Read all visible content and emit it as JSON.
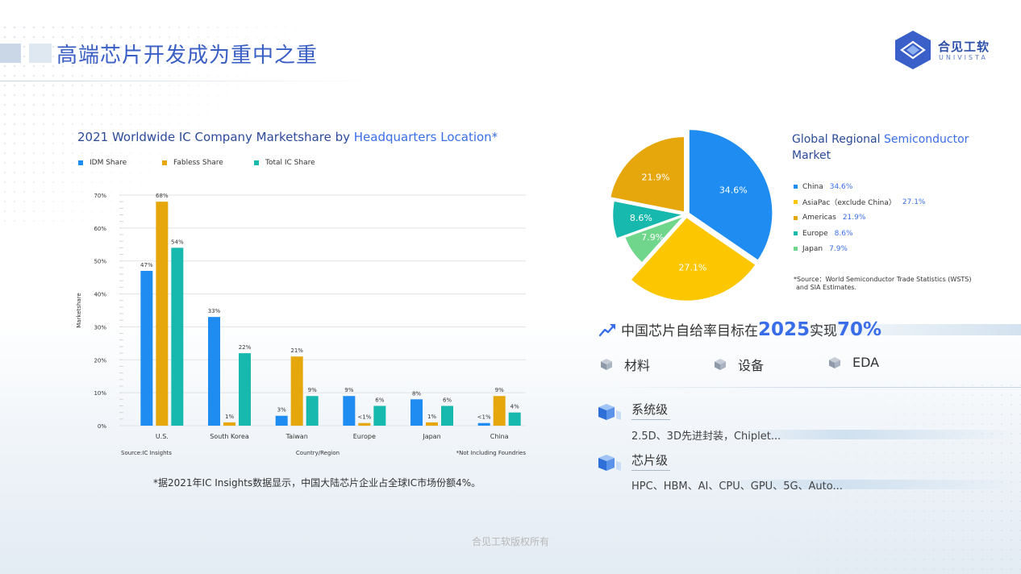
{
  "page": {
    "title": "高端芯片开发成为重中之重",
    "copyright": "合见工软版权所有"
  },
  "logo": {
    "name_cn": "合见工软",
    "name_en": "UNIVISTA"
  },
  "colors": {
    "idm": "#1e8cf0",
    "fabless": "#e6a70c",
    "total": "#17b8ad",
    "china": "#1e8cf0",
    "asiapac": "#fcc700",
    "americas": "#e6a70c",
    "europe": "#17b8ad",
    "japan": "#6fd68c",
    "accent": "#3a6ee8"
  },
  "bar_chart": {
    "title_part1": "2021 Worldwide IC Company Marketshare by ",
    "title_part2": "Headquarters Location*",
    "source": "Source:IC Insights",
    "note": "*Not Including Foundries",
    "footnote": "*据2021年IC Insights数据显示，中国大陆芯片企业占全球IC市场份额4%。"
  },
  "pie_chart": {
    "title_part1": "Global Regional ",
    "title_part2": "Semiconductor",
    "title_part3": "Market",
    "source_line1": "*Source：World Semiconductor Trade Statistics (WSTS)",
    "source_line2": "and SIA Estimates."
  },
  "chart_data": [
    {
      "type": "bar",
      "title": "2021 Worldwide IC Company Marketshare by Headquarters Location*",
      "xlabel": "Country/Region",
      "ylabel": "Marketshare",
      "ylim": [
        0,
        70
      ],
      "yticks": [
        "0%",
        "10%",
        "20%",
        "30%",
        "40%",
        "50%",
        "60%",
        "70%"
      ],
      "grid": true,
      "legend_position": "top-left",
      "categories": [
        "U.S.",
        "South Korea",
        "Taiwan",
        "Europe",
        "Japan",
        "China"
      ],
      "series": [
        {
          "name": "IDM Share",
          "values": [
            47,
            33,
            3,
            9,
            8,
            0.8
          ],
          "labels": [
            "47%",
            "33%",
            "3%",
            "9%",
            "8%",
            "<1%"
          ]
        },
        {
          "name": "Fabless Share",
          "values": [
            68,
            1,
            21,
            0.8,
            1,
            9
          ],
          "labels": [
            "68%",
            "1%",
            "21%",
            "<1%",
            "1%",
            "9%"
          ]
        },
        {
          "name": "Total IC Share",
          "values": [
            54,
            22,
            9,
            6,
            6,
            4
          ],
          "labels": [
            "54%",
            "22%",
            "9%",
            "6%",
            "6%",
            "4%"
          ]
        }
      ]
    },
    {
      "type": "pie",
      "title": "Global Regional Semiconductor Market",
      "legend_position": "right",
      "slices": [
        {
          "name": "China",
          "label": "China",
          "value": 34.6,
          "display": "34.6%"
        },
        {
          "name": "AsiaPac",
          "label": "AsiaPac（exclude China）",
          "value": 27.1,
          "display": "27.1%"
        },
        {
          "name": "Japan",
          "label": "Japan",
          "value": 7.9,
          "display": "7.9%"
        },
        {
          "name": "Europe",
          "label": "Europe",
          "value": 8.6,
          "display": "8.6%"
        },
        {
          "name": "Americas",
          "label": "Americas",
          "value": 21.9,
          "display": "21.9%"
        }
      ]
    }
  ],
  "target": {
    "prefix": "中国芯片自给率目标在",
    "year": "2025",
    "middle": "实现",
    "percent": "70%",
    "icon": "trend-up-icon"
  },
  "categories": [
    {
      "label": "材料",
      "icon": "cube-icon"
    },
    {
      "label": "设备",
      "icon": "cube-icon"
    },
    {
      "label": "EDA",
      "icon": "cube-icon"
    }
  ],
  "levels": [
    {
      "title": "系统级",
      "desc": "2.5D、3D先进封装，Chiplet...",
      "icon": "stack-cube-icon"
    },
    {
      "title": "芯片级",
      "desc": "HPC、HBM、AI、CPU、GPU、5G、Auto...",
      "icon": "stack-cube-icon"
    }
  ]
}
